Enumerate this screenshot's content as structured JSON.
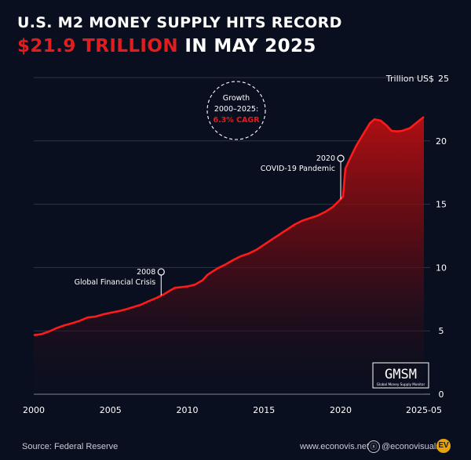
{
  "title": {
    "line1": "U.S. M2 MONEY SUPPLY HITS RECORD",
    "line2_highlight": "$21.9 TRILLION",
    "line2_rest": "IN MAY 2025"
  },
  "colors": {
    "background": "#0a0f1f",
    "accent": "#e11d1d",
    "line": "#ff1a1a",
    "grid": "#2e3446"
  },
  "chart_data": {
    "type": "area",
    "ylabel": "Trillion US$",
    "ylim": [
      0,
      25
    ],
    "xlim": [
      2000,
      2025.42
    ],
    "y_ticks": [
      0,
      5,
      10,
      15,
      20,
      25
    ],
    "x_tick_labels": [
      "2000",
      "2005",
      "2010",
      "2015",
      "2020",
      "2025-05"
    ],
    "x_tick_values": [
      2000,
      2005,
      2010,
      2015,
      2020,
      2025.42
    ],
    "grid": true,
    "series": [
      {
        "values": [
          [
            2000.0,
            4.66
          ],
          [
            2000.5,
            4.74
          ],
          [
            2001.0,
            4.95
          ],
          [
            2001.5,
            5.22
          ],
          [
            2002.0,
            5.44
          ],
          [
            2002.5,
            5.6
          ],
          [
            2003.0,
            5.8
          ],
          [
            2003.5,
            6.05
          ],
          [
            2004.0,
            6.12
          ],
          [
            2004.5,
            6.3
          ],
          [
            2005.0,
            6.43
          ],
          [
            2005.5,
            6.55
          ],
          [
            2006.0,
            6.7
          ],
          [
            2006.5,
            6.88
          ],
          [
            2007.0,
            7.07
          ],
          [
            2007.5,
            7.35
          ],
          [
            2008.0,
            7.6
          ],
          [
            2008.5,
            7.9
          ],
          [
            2008.9,
            8.2
          ],
          [
            2009.2,
            8.4
          ],
          [
            2009.6,
            8.45
          ],
          [
            2010.0,
            8.5
          ],
          [
            2010.5,
            8.65
          ],
          [
            2011.0,
            9.0
          ],
          [
            2011.3,
            9.4
          ],
          [
            2011.6,
            9.65
          ],
          [
            2012.0,
            9.95
          ],
          [
            2012.5,
            10.25
          ],
          [
            2013.0,
            10.6
          ],
          [
            2013.5,
            10.9
          ],
          [
            2014.0,
            11.1
          ],
          [
            2014.5,
            11.4
          ],
          [
            2015.0,
            11.8
          ],
          [
            2015.5,
            12.2
          ],
          [
            2016.0,
            12.6
          ],
          [
            2016.5,
            13.0
          ],
          [
            2017.0,
            13.4
          ],
          [
            2017.5,
            13.7
          ],
          [
            2018.0,
            13.9
          ],
          [
            2018.5,
            14.1
          ],
          [
            2019.0,
            14.4
          ],
          [
            2019.5,
            14.8
          ],
          [
            2020.0,
            15.4
          ],
          [
            2020.15,
            15.6
          ],
          [
            2020.3,
            17.8
          ],
          [
            2020.6,
            18.6
          ],
          [
            2021.0,
            19.6
          ],
          [
            2021.5,
            20.6
          ],
          [
            2021.9,
            21.4
          ],
          [
            2022.2,
            21.7
          ],
          [
            2022.6,
            21.6
          ],
          [
            2023.0,
            21.2
          ],
          [
            2023.3,
            20.8
          ],
          [
            2023.7,
            20.75
          ],
          [
            2024.0,
            20.8
          ],
          [
            2024.5,
            21.0
          ],
          [
            2025.0,
            21.5
          ],
          [
            2025.42,
            21.9
          ]
        ]
      }
    ],
    "annotations": [
      {
        "year_label": "2008",
        "text": "Global Financial Crisis",
        "x": 2008.3,
        "y": 7.8
      },
      {
        "year_label": "2020",
        "text": "COVID-19 Pandemic",
        "x": 2020.0,
        "y": 15.4
      }
    ],
    "growth_badge": {
      "line1": "Growth",
      "line2": "2000–2025:",
      "line3": "6.3% CAGR"
    },
    "watermark": {
      "main": "GMSM",
      "sub": "Global Money Supply Monitor"
    }
  },
  "footer": {
    "source": "Source: Federal Reserve",
    "website": "www.econovis.net",
    "x_icon": "ⓧ",
    "handle": "@econovisuals",
    "logo_text": "EV"
  }
}
